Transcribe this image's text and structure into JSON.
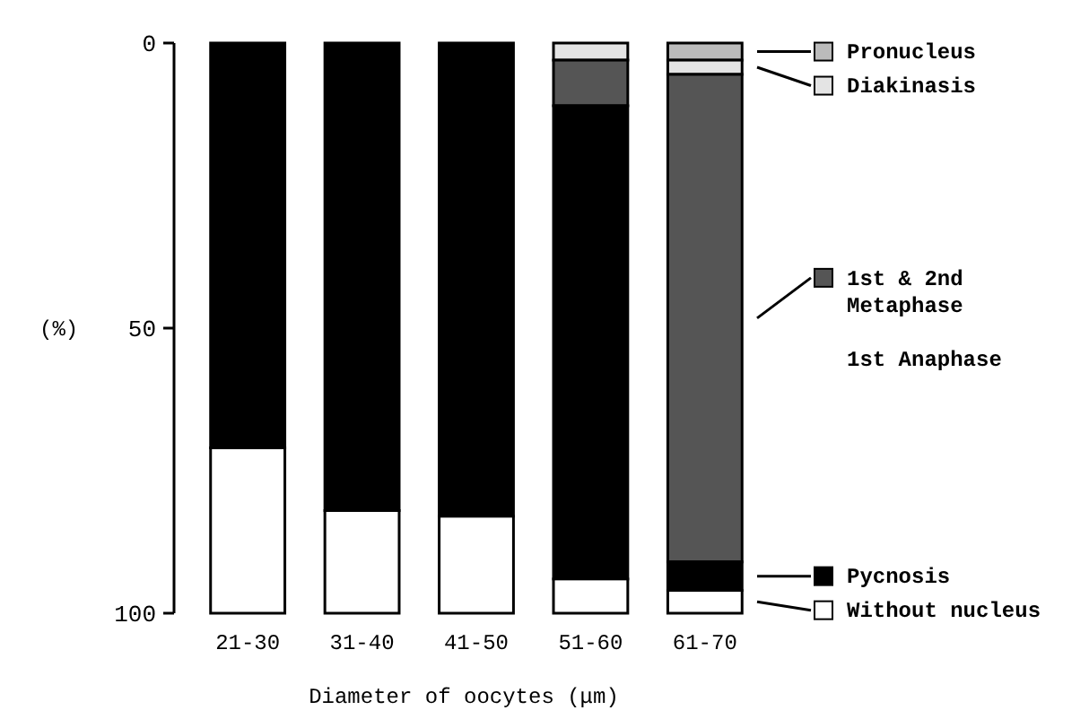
{
  "chart_data": {
    "type": "bar",
    "stacked": true,
    "categories": [
      "21-30",
      "31-40",
      "41-50",
      "51-60",
      "61-70"
    ],
    "series": [
      {
        "name": "Pronucleus",
        "color": "#bbbbbb",
        "values": [
          0,
          0,
          0,
          0,
          3
        ]
      },
      {
        "name": "Diakinasis",
        "color": "#e4e4e4",
        "values": [
          0,
          0,
          0,
          3,
          2.5
        ]
      },
      {
        "name": "1st & 2nd\nMetaphase\n\n1st Anaphase",
        "color": "#555555",
        "values": [
          0,
          0,
          0,
          8,
          85.5
        ]
      },
      {
        "name": "Pycnosis",
        "color": "#000000",
        "values": [
          71,
          82,
          83,
          83,
          5
        ]
      },
      {
        "name": "Without nucleus",
        "color": "#ffffff",
        "values": [
          29,
          18,
          17,
          6,
          4
        ]
      }
    ],
    "ylim": [
      100,
      0
    ],
    "yticks": [
      0,
      50,
      100
    ],
    "ylabel": "(%)",
    "xlabel": "Diameter of oocytes (μm)",
    "legend": "right",
    "grid": false
  }
}
